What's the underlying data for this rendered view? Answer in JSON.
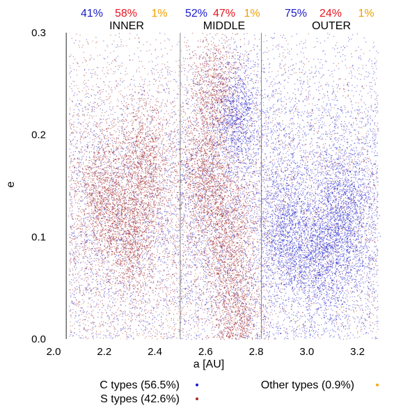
{
  "chart_data": {
    "type": "scatter",
    "xlabel": "a [AU]",
    "ylabel": "e",
    "xlim": [
      2.0,
      3.3
    ],
    "ylim": [
      0.0,
      0.3
    ],
    "x_ticks": [
      "2.0",
      "2.2",
      "2.4",
      "2.6",
      "2.8",
      "3.0",
      "3.2"
    ],
    "y_ticks": [
      "0.0",
      "0.1",
      "0.2",
      "0.3"
    ],
    "region_boundaries": [
      2.05,
      2.5,
      2.82
    ],
    "regions": [
      {
        "name": "INNER",
        "a_range": [
          2.05,
          2.5
        ],
        "percents": [
          "41%",
          "58%",
          "1%"
        ]
      },
      {
        "name": "MIDDLE",
        "a_range": [
          2.5,
          2.82
        ],
        "percents": [
          "52%",
          "47%",
          "1%"
        ]
      },
      {
        "name": "OUTER",
        "a_range": [
          2.82,
          3.3
        ],
        "percents": [
          "75%",
          "24%",
          "1%"
        ]
      }
    ],
    "series": [
      {
        "name": "C types (56.5%)",
        "color": "#1a1acc"
      },
      {
        "name": "S types (42.6%)",
        "color": "#a52a2a"
      },
      {
        "name": "Other types (0.9%)",
        "color": "#ffa500"
      }
    ],
    "percent_colors": [
      "#1a1acc",
      "#e8141e",
      "#f0a000"
    ],
    "clusters": [
      {
        "series": "S types (42.6%)",
        "a": 2.36,
        "e": 0.17
      },
      {
        "series": "S types (42.6%)",
        "a": 2.3,
        "e": 0.1
      },
      {
        "series": "S types (42.6%)",
        "a": 2.2,
        "e": 0.14
      },
      {
        "series": "S types (42.6%)",
        "a": 2.63,
        "e": 0.24
      },
      {
        "series": "S types (42.6%)",
        "a": 2.6,
        "e": 0.16
      },
      {
        "series": "S types (42.6%)",
        "a": 2.68,
        "e": 0.1
      },
      {
        "series": "S types (42.6%)",
        "a": 2.72,
        "e": 0.02
      },
      {
        "series": "C types (56.5%)",
        "a": 2.72,
        "e": 0.22
      },
      {
        "series": "C types (56.5%)",
        "a": 3.15,
        "e": 0.12
      },
      {
        "series": "C types (56.5%)",
        "a": 3.05,
        "e": 0.08
      },
      {
        "series": "C types (56.5%)",
        "a": 2.92,
        "e": 0.1
      }
    ]
  }
}
